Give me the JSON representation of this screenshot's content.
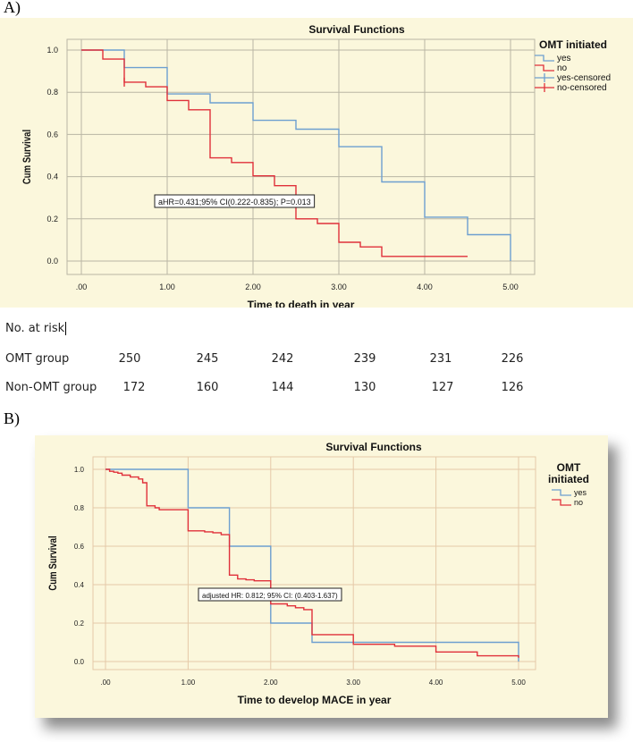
{
  "panels": {
    "a_label": "A)",
    "b_label": "B)"
  },
  "chart_data": [
    {
      "id": "A",
      "type": "line",
      "step": true,
      "title": "Survival Functions",
      "xlabel": "Time to death in year",
      "ylabel": "Cum Survival",
      "xlim": [
        0,
        5
      ],
      "ylim": [
        0,
        1
      ],
      "xticks": [
        0,
        1,
        2,
        3,
        4,
        5
      ],
      "xtick_labels": [
        ".00",
        "1.00",
        "2.00",
        "3.00",
        "4.00",
        "5.00"
      ],
      "yticks": [
        0,
        0.2,
        0.4,
        0.6,
        0.8,
        1.0
      ],
      "ytick_labels": [
        "0.0",
        "0.2",
        "0.4",
        "0.6",
        "0.8",
        "1.0"
      ],
      "legend_title": "OMT initiated",
      "legend": [
        "yes",
        "no",
        "yes-censored",
        "no-censored"
      ],
      "legend_position": "top-right",
      "annotation": "aHR=0.431;95% CI(0.222-0.835); P=0.013",
      "colors": {
        "yes": "#6d9fd0",
        "no": "#e0303a",
        "grid": "#b9b6a4"
      },
      "series": [
        {
          "name": "yes",
          "x": [
            0,
            0.5,
            1.0,
            1.5,
            2.0,
            2.5,
            3.0,
            3.5,
            4.0,
            4.5,
            5.0,
            5.0
          ],
          "y": [
            1.0,
            0.917,
            0.792,
            0.75,
            0.667,
            0.625,
            0.542,
            0.375,
            0.208,
            0.125,
            0.125,
            0.0
          ]
        },
        {
          "name": "no",
          "x": [
            0,
            0.25,
            0.5,
            0.75,
            1.0,
            1.25,
            1.5,
            1.75,
            2.0,
            2.25,
            2.5,
            2.75,
            3.0,
            3.25,
            3.5,
            3.75,
            4.0,
            4.5
          ],
          "y": [
            1.0,
            0.957,
            0.848,
            0.826,
            0.761,
            0.717,
            0.489,
            0.467,
            0.404,
            0.357,
            0.2,
            0.178,
            0.089,
            0.067,
            0.022,
            0.022,
            0.022,
            0.022
          ]
        }
      ],
      "censored": [
        {
          "series": "no",
          "x": 0.5,
          "y": 0.848
        }
      ]
    },
    {
      "id": "B",
      "type": "line",
      "step": true,
      "title": "Survival Functions",
      "xlabel": "Time to develop MACE in year",
      "ylabel": "Cum Survival",
      "xlim": [
        0,
        5
      ],
      "ylim": [
        0,
        1
      ],
      "xticks": [
        0,
        1,
        2,
        3,
        4,
        5
      ],
      "xtick_labels": [
        ".00",
        "1.00",
        "2.00",
        "3.00",
        "4.00",
        "5.00"
      ],
      "yticks": [
        0,
        0.2,
        0.4,
        0.6,
        0.8,
        1.0
      ],
      "ytick_labels": [
        "0.0",
        "0.2",
        "0.4",
        "0.6",
        "0.8",
        "1.0"
      ],
      "legend_title_lines": [
        "OMT",
        "initiated"
      ],
      "legend": [
        "yes",
        "no"
      ],
      "legend_position": "top-right",
      "annotation": "adjusted HR: 0.812; 95% CI: (0.403-1.637)",
      "colors": {
        "yes": "#6d9fd0",
        "no": "#e0303a",
        "grid": "#e5c9a8"
      },
      "series": [
        {
          "name": "yes",
          "x": [
            0,
            1.0,
            1.5,
            2.0,
            2.5,
            5.0,
            5.0
          ],
          "y": [
            1.0,
            0.8,
            0.6,
            0.2,
            0.1,
            0.1,
            0.0
          ]
        },
        {
          "name": "no",
          "x": [
            0,
            0.05,
            0.1,
            0.15,
            0.2,
            0.3,
            0.4,
            0.45,
            0.5,
            0.6,
            0.65,
            1.0,
            1.2,
            1.3,
            1.4,
            1.5,
            1.6,
            1.7,
            1.8,
            2.0,
            2.2,
            2.3,
            2.4,
            2.5,
            3.0,
            3.5,
            4.0,
            4.5,
            5.0
          ],
          "y": [
            1.0,
            0.99,
            0.985,
            0.98,
            0.97,
            0.96,
            0.95,
            0.93,
            0.81,
            0.8,
            0.79,
            0.68,
            0.675,
            0.67,
            0.66,
            0.45,
            0.43,
            0.425,
            0.42,
            0.3,
            0.29,
            0.28,
            0.27,
            0.14,
            0.09,
            0.08,
            0.05,
            0.03,
            0.02
          ]
        }
      ],
      "censored": []
    }
  ],
  "risk_table": {
    "title": "No. at risk",
    "rows": [
      {
        "label": "OMT group",
        "values": [
          "250",
          "245",
          "242",
          "239",
          "231",
          "226"
        ]
      },
      {
        "label": "Non-OMT group",
        "values": [
          "172",
          "160",
          "144",
          "130",
          "127",
          "126"
        ]
      }
    ]
  }
}
